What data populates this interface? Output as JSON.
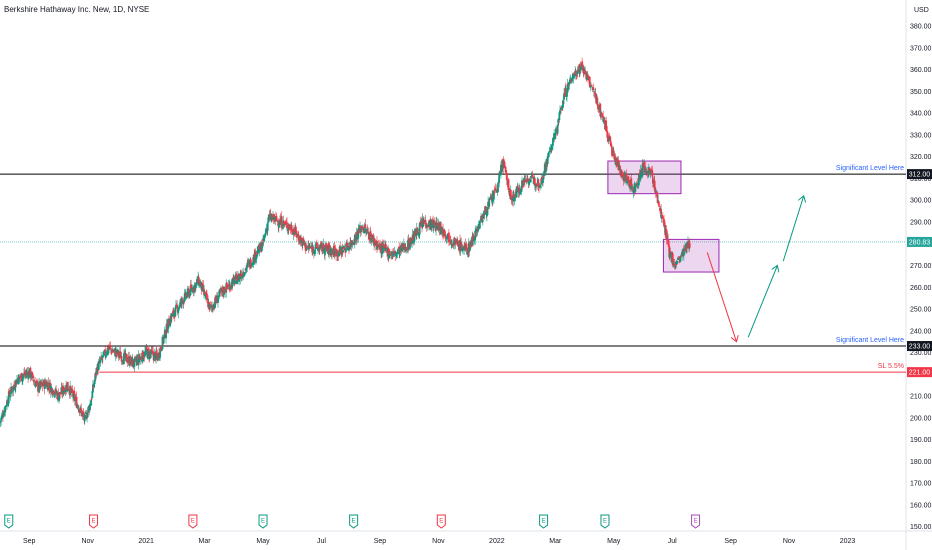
{
  "chart_data": {
    "type": "candlestick",
    "title": "Berkshire Hathaway Inc. New, 1D, NYSE",
    "currency_label": "USD",
    "y_ticks": [
      150,
      160,
      170,
      180,
      190,
      200,
      210,
      220,
      230,
      240,
      250,
      260,
      270,
      280,
      290,
      300,
      310,
      320,
      330,
      340,
      350,
      360,
      370,
      380
    ],
    "ylim": [
      148,
      392
    ],
    "x_ticks": [
      {
        "label": "Sep",
        "t": 0
      },
      {
        "label": "Nov",
        "t": 2
      },
      {
        "label": "2021",
        "t": 4
      },
      {
        "label": "Mar",
        "t": 6
      },
      {
        "label": "May",
        "t": 8
      },
      {
        "label": "Jul",
        "t": 10
      },
      {
        "label": "Sep",
        "t": 12
      },
      {
        "label": "Nov",
        "t": 14
      },
      {
        "label": "2022",
        "t": 16
      },
      {
        "label": "Mar",
        "t": 18
      },
      {
        "label": "May",
        "t": 20
      },
      {
        "label": "Jul",
        "t": 22
      },
      {
        "label": "Sep",
        "t": 24
      },
      {
        "label": "Nov",
        "t": 26
      },
      {
        "label": "2023",
        "t": 28
      }
    ],
    "xlim": [
      -1,
      30
    ],
    "price_path": [
      [
        -1.0,
        198
      ],
      [
        -0.7,
        210
      ],
      [
        -0.4,
        218
      ],
      [
        0.0,
        221
      ],
      [
        0.3,
        214
      ],
      [
        0.6,
        216
      ],
      [
        1.0,
        210
      ],
      [
        1.3,
        215
      ],
      [
        1.7,
        205
      ],
      [
        1.9,
        199
      ],
      [
        2.1,
        207
      ],
      [
        2.3,
        222
      ],
      [
        2.7,
        232
      ],
      [
        3.2,
        228
      ],
      [
        3.6,
        225
      ],
      [
        4.0,
        230
      ],
      [
        4.4,
        228
      ],
      [
        4.8,
        245
      ],
      [
        5.3,
        255
      ],
      [
        5.8,
        263
      ],
      [
        6.2,
        250
      ],
      [
        6.6,
        258
      ],
      [
        7.2,
        265
      ],
      [
        7.6,
        272
      ],
      [
        8.0,
        280
      ],
      [
        8.2,
        292
      ],
      [
        8.6,
        290
      ],
      [
        9.0,
        287
      ],
      [
        9.5,
        278
      ],
      [
        10.0,
        278
      ],
      [
        10.6,
        276
      ],
      [
        11.0,
        280
      ],
      [
        11.4,
        288
      ],
      [
        12.0,
        278
      ],
      [
        12.5,
        275
      ],
      [
        13.0,
        280
      ],
      [
        13.5,
        290
      ],
      [
        14.0,
        288
      ],
      [
        14.6,
        280
      ],
      [
        15.0,
        277
      ],
      [
        15.5,
        292
      ],
      [
        16.0,
        305
      ],
      [
        16.2,
        318
      ],
      [
        16.5,
        300
      ],
      [
        17.0,
        310
      ],
      [
        17.5,
        308
      ],
      [
        17.8,
        322
      ],
      [
        18.0,
        330
      ],
      [
        18.3,
        348
      ],
      [
        18.6,
        357
      ],
      [
        18.9,
        362
      ],
      [
        19.3,
        350
      ],
      [
        19.7,
        335
      ],
      [
        20.0,
        320
      ],
      [
        20.3,
        312
      ],
      [
        20.7,
        305
      ],
      [
        21.0,
        315
      ],
      [
        21.3,
        312
      ],
      [
        21.5,
        300
      ],
      [
        21.7,
        290
      ],
      [
        21.9,
        276
      ],
      [
        22.1,
        270
      ],
      [
        22.3,
        274
      ],
      [
        22.6,
        280
      ]
    ],
    "boxes": [
      {
        "t0": 19.8,
        "t1": 22.3,
        "y0": 303,
        "y1": 318
      },
      {
        "t0": 21.7,
        "t1": 23.6,
        "y0": 267,
        "y1": 282
      }
    ],
    "levels": [
      {
        "value": 312.0,
        "color": "#000000",
        "label": "Significant Level Here",
        "tag": "312.00",
        "t_start": -1
      },
      {
        "value": 280.83,
        "color": "#26a69a",
        "label": "",
        "tag": "280.83",
        "t_start": -1
      },
      {
        "value": 233.0,
        "color": "#000000",
        "label": "Significant Level Here",
        "tag": "233.00",
        "t_start": -1
      },
      {
        "value": 221.0,
        "color": "#f23645",
        "label": "SL 5.5%",
        "tag": "221.00",
        "t_start": 2.4
      }
    ],
    "arrows": [
      {
        "t0": 23.2,
        "y0": 276,
        "t1": 24.2,
        "y1": 235,
        "color": "#f23645"
      },
      {
        "t0": 24.6,
        "y0": 237,
        "t1": 25.6,
        "y1": 270,
        "color": "#089981"
      },
      {
        "t0": 25.8,
        "y0": 272,
        "t1": 26.5,
        "y1": 302,
        "color": "#089981"
      }
    ],
    "earnings_markers": [
      {
        "t": -0.7,
        "kind": "E",
        "color": "#089981"
      },
      {
        "t": 2.2,
        "kind": "E",
        "color": "#f23645"
      },
      {
        "t": 5.6,
        "kind": "E",
        "color": "#f23645"
      },
      {
        "t": 8.0,
        "kind": "E",
        "color": "#089981"
      },
      {
        "t": 11.1,
        "kind": "E",
        "color": "#089981"
      },
      {
        "t": 14.1,
        "kind": "E",
        "color": "#f23645"
      },
      {
        "t": 17.6,
        "kind": "E",
        "color": "#089981"
      },
      {
        "t": 19.7,
        "kind": "E",
        "color": "#089981"
      },
      {
        "t": 22.8,
        "kind": "E",
        "color": "#ab47bc"
      }
    ]
  }
}
